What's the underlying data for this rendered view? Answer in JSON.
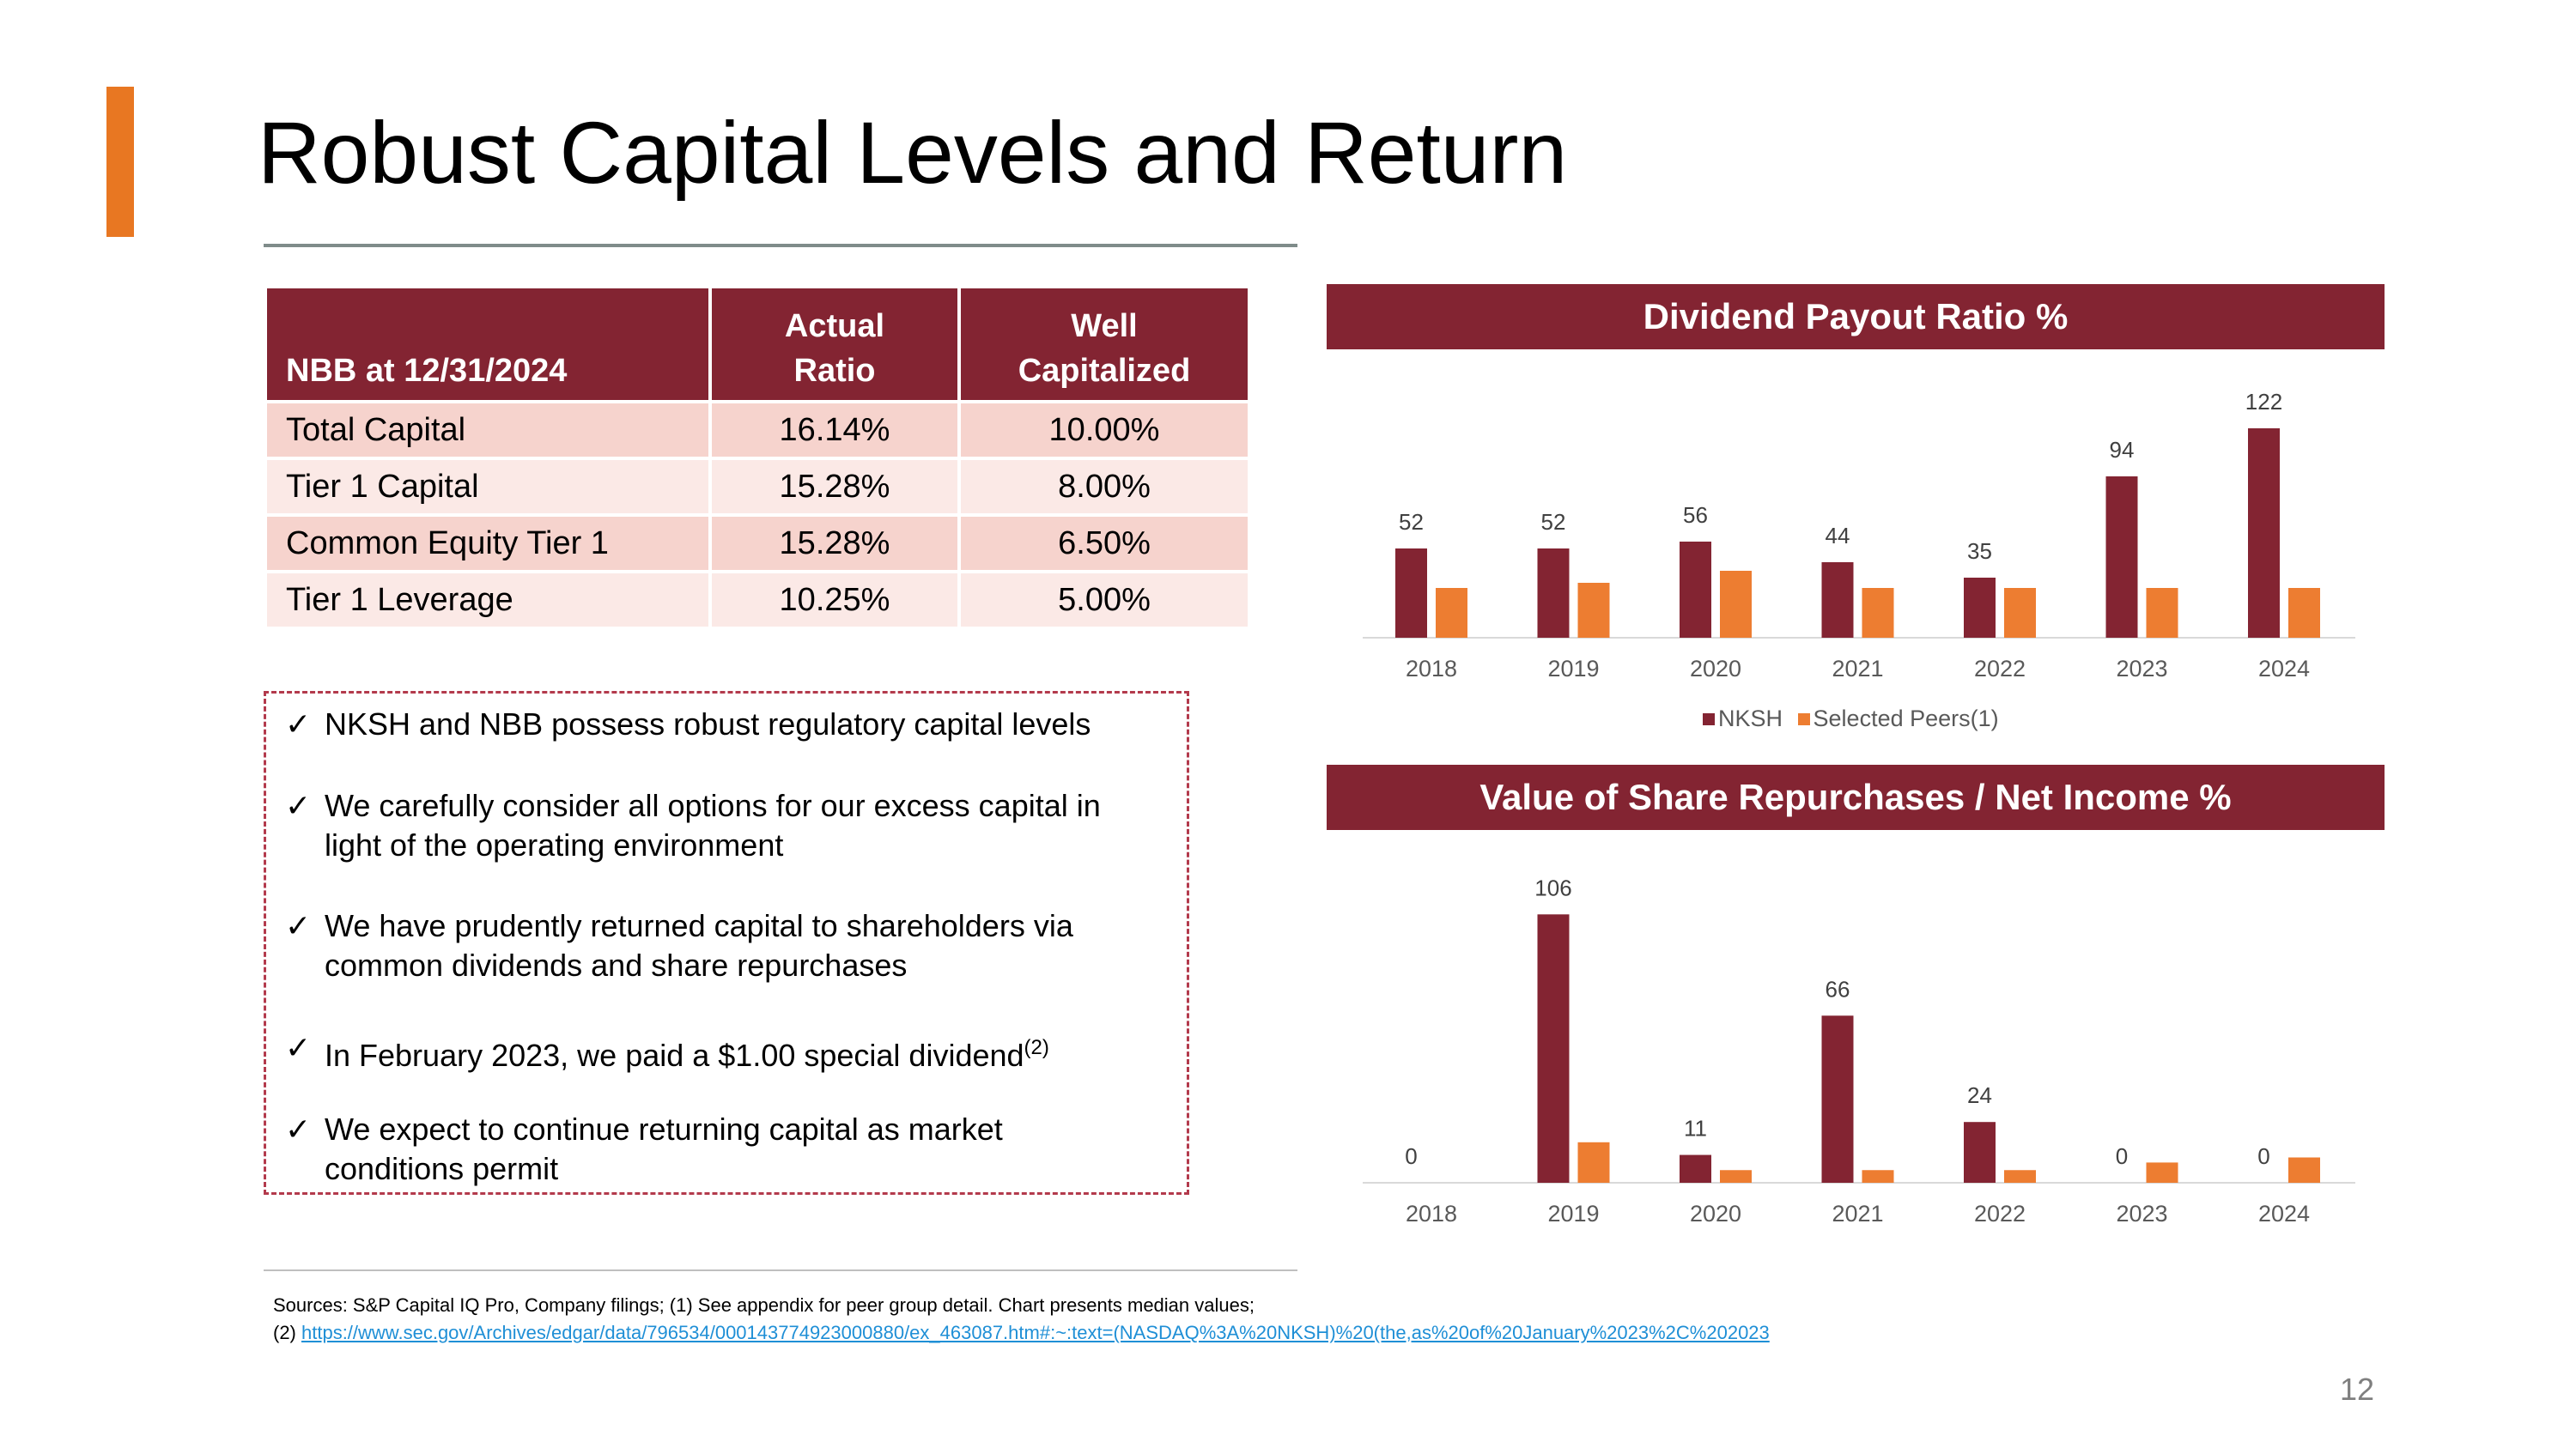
{
  "title": "Robust Capital Levels and Return",
  "colors": {
    "accent": "#E87722",
    "maroon": "#832432",
    "peer": "#ED7D31",
    "row_odd": "#F6D3CD",
    "row_even": "#FBE9E6"
  },
  "table": {
    "headers": [
      "NBB at 12/31/2024",
      "Actual\nRatio",
      "Well\nCapitalized"
    ],
    "rows": [
      [
        "Total Capital",
        "16.14%",
        "10.00%"
      ],
      [
        "Tier 1 Capital",
        "15.28%",
        "8.00%"
      ],
      [
        "Common Equity Tier 1",
        "15.28%",
        "6.50%"
      ],
      [
        "Tier 1 Leverage",
        "10.25%",
        "5.00%"
      ]
    ]
  },
  "bullets": [
    {
      "lines": [
        "NKSH and NBB possess robust regulatory capital levels"
      ]
    },
    {
      "lines": [
        "We carefully consider all options for our excess capital in",
        "light of the operating environment"
      ]
    },
    {
      "lines": [
        "We have prudently returned capital to shareholders via",
        "common dividends and share repurchases"
      ]
    },
    {
      "lines": [
        "In February 2023, we paid a $1.00 special dividend"
      ],
      "sup": "(2)"
    },
    {
      "lines": [
        "We expect to continue returning capital as market",
        "conditions permit"
      ]
    }
  ],
  "chart_data": [
    {
      "type": "bar",
      "title": "Dividend Payout Ratio %",
      "categories": [
        "2018",
        "2019",
        "2020",
        "2021",
        "2022",
        "2023",
        "2024"
      ],
      "series": [
        {
          "name": "NKSH",
          "values": [
            52,
            52,
            56,
            44,
            35,
            94,
            122
          ]
        },
        {
          "name": "Selected Peers(1)",
          "values": [
            29,
            32,
            39,
            29,
            29,
            29,
            29
          ]
        }
      ],
      "data_labels": [
        "52",
        "52",
        "56",
        "44",
        "35",
        "94",
        "122"
      ],
      "legend": "bottom",
      "ylim": [
        0,
        130
      ],
      "grid": false
    },
    {
      "type": "bar",
      "title": "Value of Share Repurchases / Net Income %",
      "categories": [
        "2018",
        "2019",
        "2020",
        "2021",
        "2022",
        "2023",
        "2024"
      ],
      "series": [
        {
          "name": "NKSH",
          "values": [
            0,
            106,
            11,
            66,
            24,
            0,
            0
          ]
        },
        {
          "name": "Selected Peers(1)",
          "values": [
            0,
            16,
            5,
            5,
            5,
            8,
            10
          ]
        }
      ],
      "data_labels": [
        "0",
        "106",
        "11",
        "66",
        "24",
        "0",
        "0"
      ],
      "ylim": [
        0,
        115
      ],
      "grid": false
    }
  ],
  "footnotes": {
    "sources": "Sources: S&P Capital IQ Pro, Company filings; (1) See appendix for peer group detail. Chart presents median values;",
    "note2_prefix": "(2) ",
    "note2_link": "https://www.sec.gov/Archives/edgar/data/796534/000143774923000880/ex_463087.htm#:~:text=(NASDAQ%3A%20NKSH)%20(the,as%20of%20January%2023%2C%202023"
  },
  "page_number": "12"
}
